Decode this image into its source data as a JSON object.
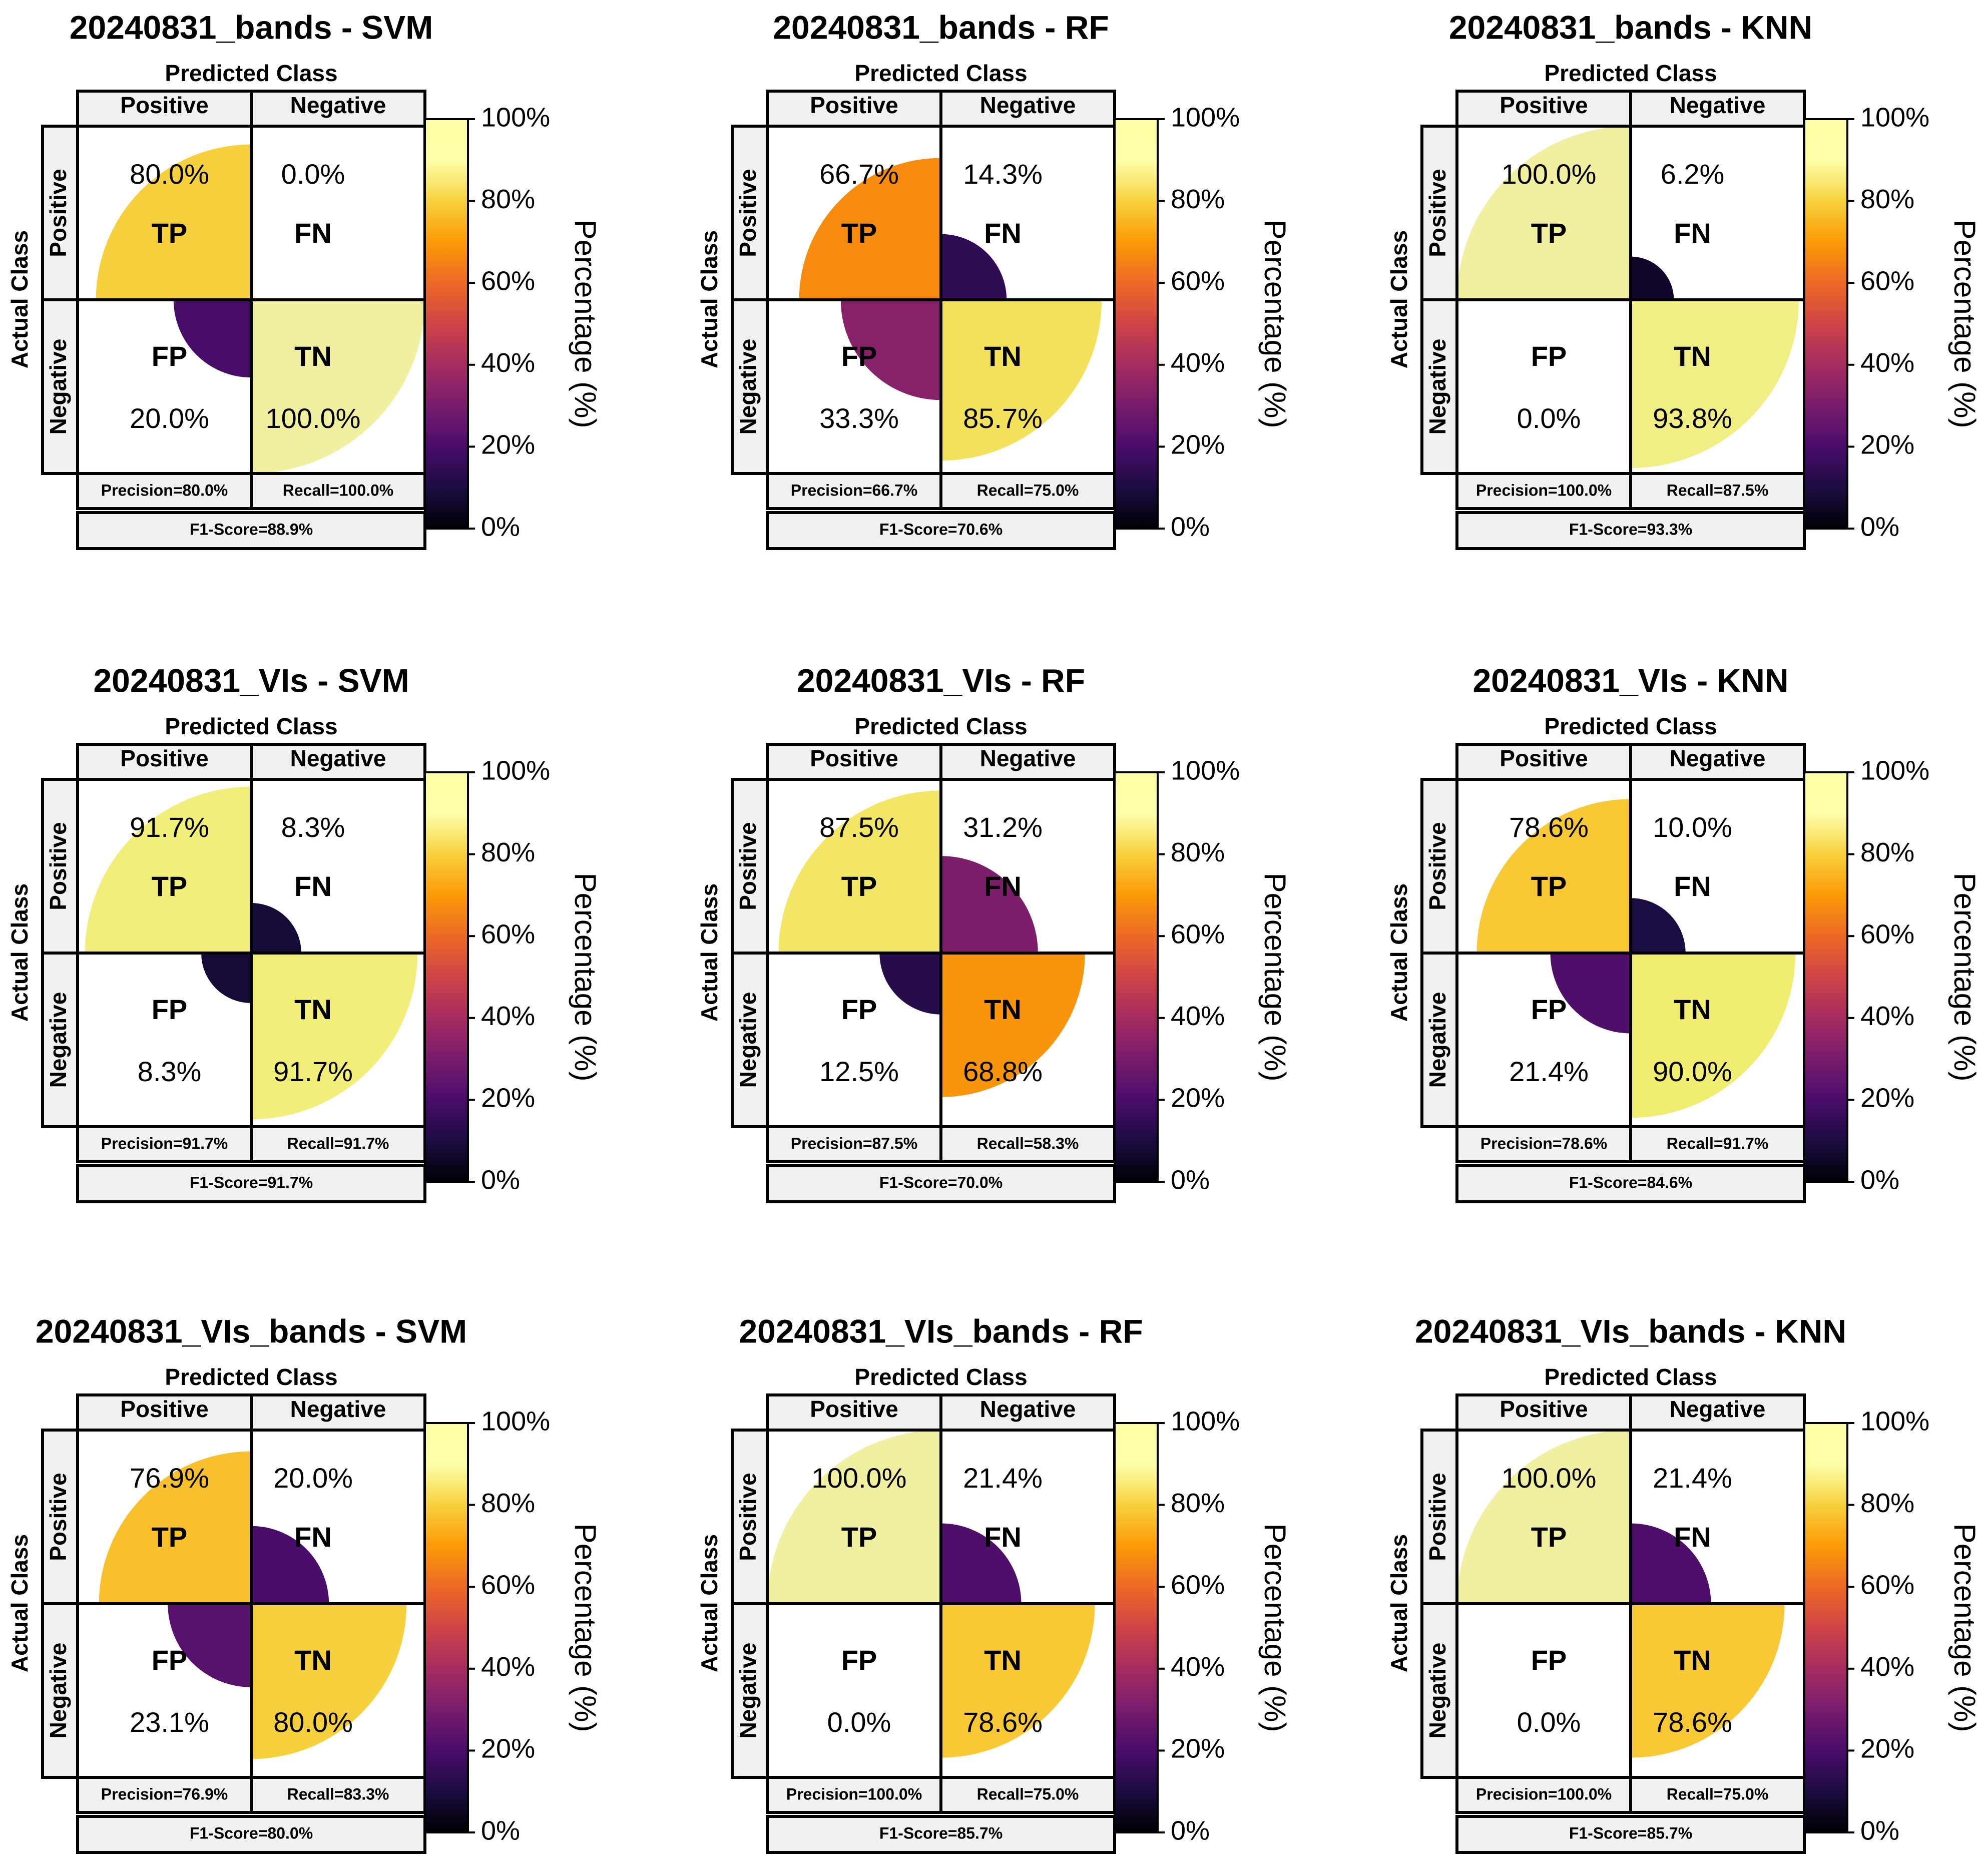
{
  "figure": {
    "cell_labels": [
      "TP",
      "FN",
      "FP",
      "TN"
    ],
    "header_predicted": "Predicted Class",
    "header_actual": "Actual Class",
    "col_labels": [
      "Positive",
      "Negative"
    ],
    "row_labels": [
      "Positive",
      "Negative"
    ],
    "colorbar_label": "Percentage (%)",
    "colorbar_ticks": [
      "0%",
      "20%",
      "40%",
      "60%",
      "80%",
      "100%"
    ],
    "colormap": "inferno",
    "metric_box_color": "#eff2f1"
  },
  "chart_data": [
    {
      "type": "confusion-matrix",
      "title": "20240831_bands - SVM",
      "values": {
        "TP": 80.0,
        "FN": 0.0,
        "FP": 20.0,
        "TN": 100.0
      },
      "labels": {
        "TP": "80.0%",
        "FN": "0.0%",
        "FP": "20.0%",
        "TN": "100.0%"
      },
      "precision": "Precision=80.0%",
      "recall": "Recall=100.0%",
      "f1": "F1-Score=88.9%"
    },
    {
      "type": "confusion-matrix",
      "title": "20240831_bands - RF",
      "values": {
        "TP": 66.7,
        "FN": 14.3,
        "FP": 33.3,
        "TN": 85.7
      },
      "labels": {
        "TP": "66.7%",
        "FN": "14.3%",
        "FP": "33.3%",
        "TN": "85.7%"
      },
      "precision": "Precision=66.7%",
      "recall": "Recall=75.0%",
      "f1": "F1-Score=70.6%"
    },
    {
      "type": "confusion-matrix",
      "title": "20240831_bands - KNN",
      "values": {
        "TP": 100.0,
        "FN": 6.2,
        "FP": 0.0,
        "TN": 93.8
      },
      "labels": {
        "TP": "100.0%",
        "FN": "6.2%",
        "FP": "0.0%",
        "TN": "93.8%"
      },
      "precision": "Precision=100.0%",
      "recall": "Recall=87.5%",
      "f1": "F1-Score=93.3%"
    },
    {
      "type": "confusion-matrix",
      "title": "20240831_VIs - SVM",
      "values": {
        "TP": 91.7,
        "FN": 8.3,
        "FP": 8.3,
        "TN": 91.7
      },
      "labels": {
        "TP": "91.7%",
        "FN": "8.3%",
        "FP": "8.3%",
        "TN": "91.7%"
      },
      "precision": "Precision=91.7%",
      "recall": "Recall=91.7%",
      "f1": "F1-Score=91.7%"
    },
    {
      "type": "confusion-matrix",
      "title": "20240831_VIs - RF",
      "values": {
        "TP": 87.5,
        "FN": 31.2,
        "FP": 12.5,
        "TN": 68.8
      },
      "labels": {
        "TP": "87.5%",
        "FN": "31.2%",
        "FP": "12.5%",
        "TN": "68.8%"
      },
      "precision": "Precision=87.5%",
      "recall": "Recall=58.3%",
      "f1": "F1-Score=70.0%"
    },
    {
      "type": "confusion-matrix",
      "title": "20240831_VIs - KNN",
      "values": {
        "TP": 78.6,
        "FN": 10.0,
        "FP": 21.4,
        "TN": 90.0
      },
      "labels": {
        "TP": "78.6%",
        "FN": "10.0%",
        "FP": "21.4%",
        "TN": "90.0%"
      },
      "precision": "Precision=78.6%",
      "recall": "Recall=91.7%",
      "f1": "F1-Score=84.6%"
    },
    {
      "type": "confusion-matrix",
      "title": "20240831_VIs_bands - SVM",
      "values": {
        "TP": 76.9,
        "FN": 20.0,
        "FP": 23.1,
        "TN": 80.0
      },
      "labels": {
        "TP": "76.9%",
        "FN": "20.0%",
        "FP": "23.1%",
        "TN": "80.0%"
      },
      "precision": "Precision=76.9%",
      "recall": "Recall=83.3%",
      "f1": "F1-Score=80.0%"
    },
    {
      "type": "confusion-matrix",
      "title": "20240831_VIs_bands - RF",
      "values": {
        "TP": 100.0,
        "FN": 21.4,
        "FP": 0.0,
        "TN": 78.6
      },
      "labels": {
        "TP": "100.0%",
        "FN": "21.4%",
        "FP": "0.0%",
        "TN": "78.6%"
      },
      "precision": "Precision=100.0%",
      "recall": "Recall=75.0%",
      "f1": "F1-Score=85.7%"
    },
    {
      "type": "confusion-matrix",
      "title": "20240831_VIs_bands - KNN",
      "values": {
        "TP": 100.0,
        "FN": 21.4,
        "FP": 0.0,
        "TN": 78.6
      },
      "labels": {
        "TP": "100.0%",
        "FN": "21.4%",
        "FP": "0.0%",
        "TN": "78.6%"
      },
      "precision": "Precision=100.0%",
      "recall": "Recall=75.0%",
      "f1": "F1-Score=85.7%"
    }
  ]
}
